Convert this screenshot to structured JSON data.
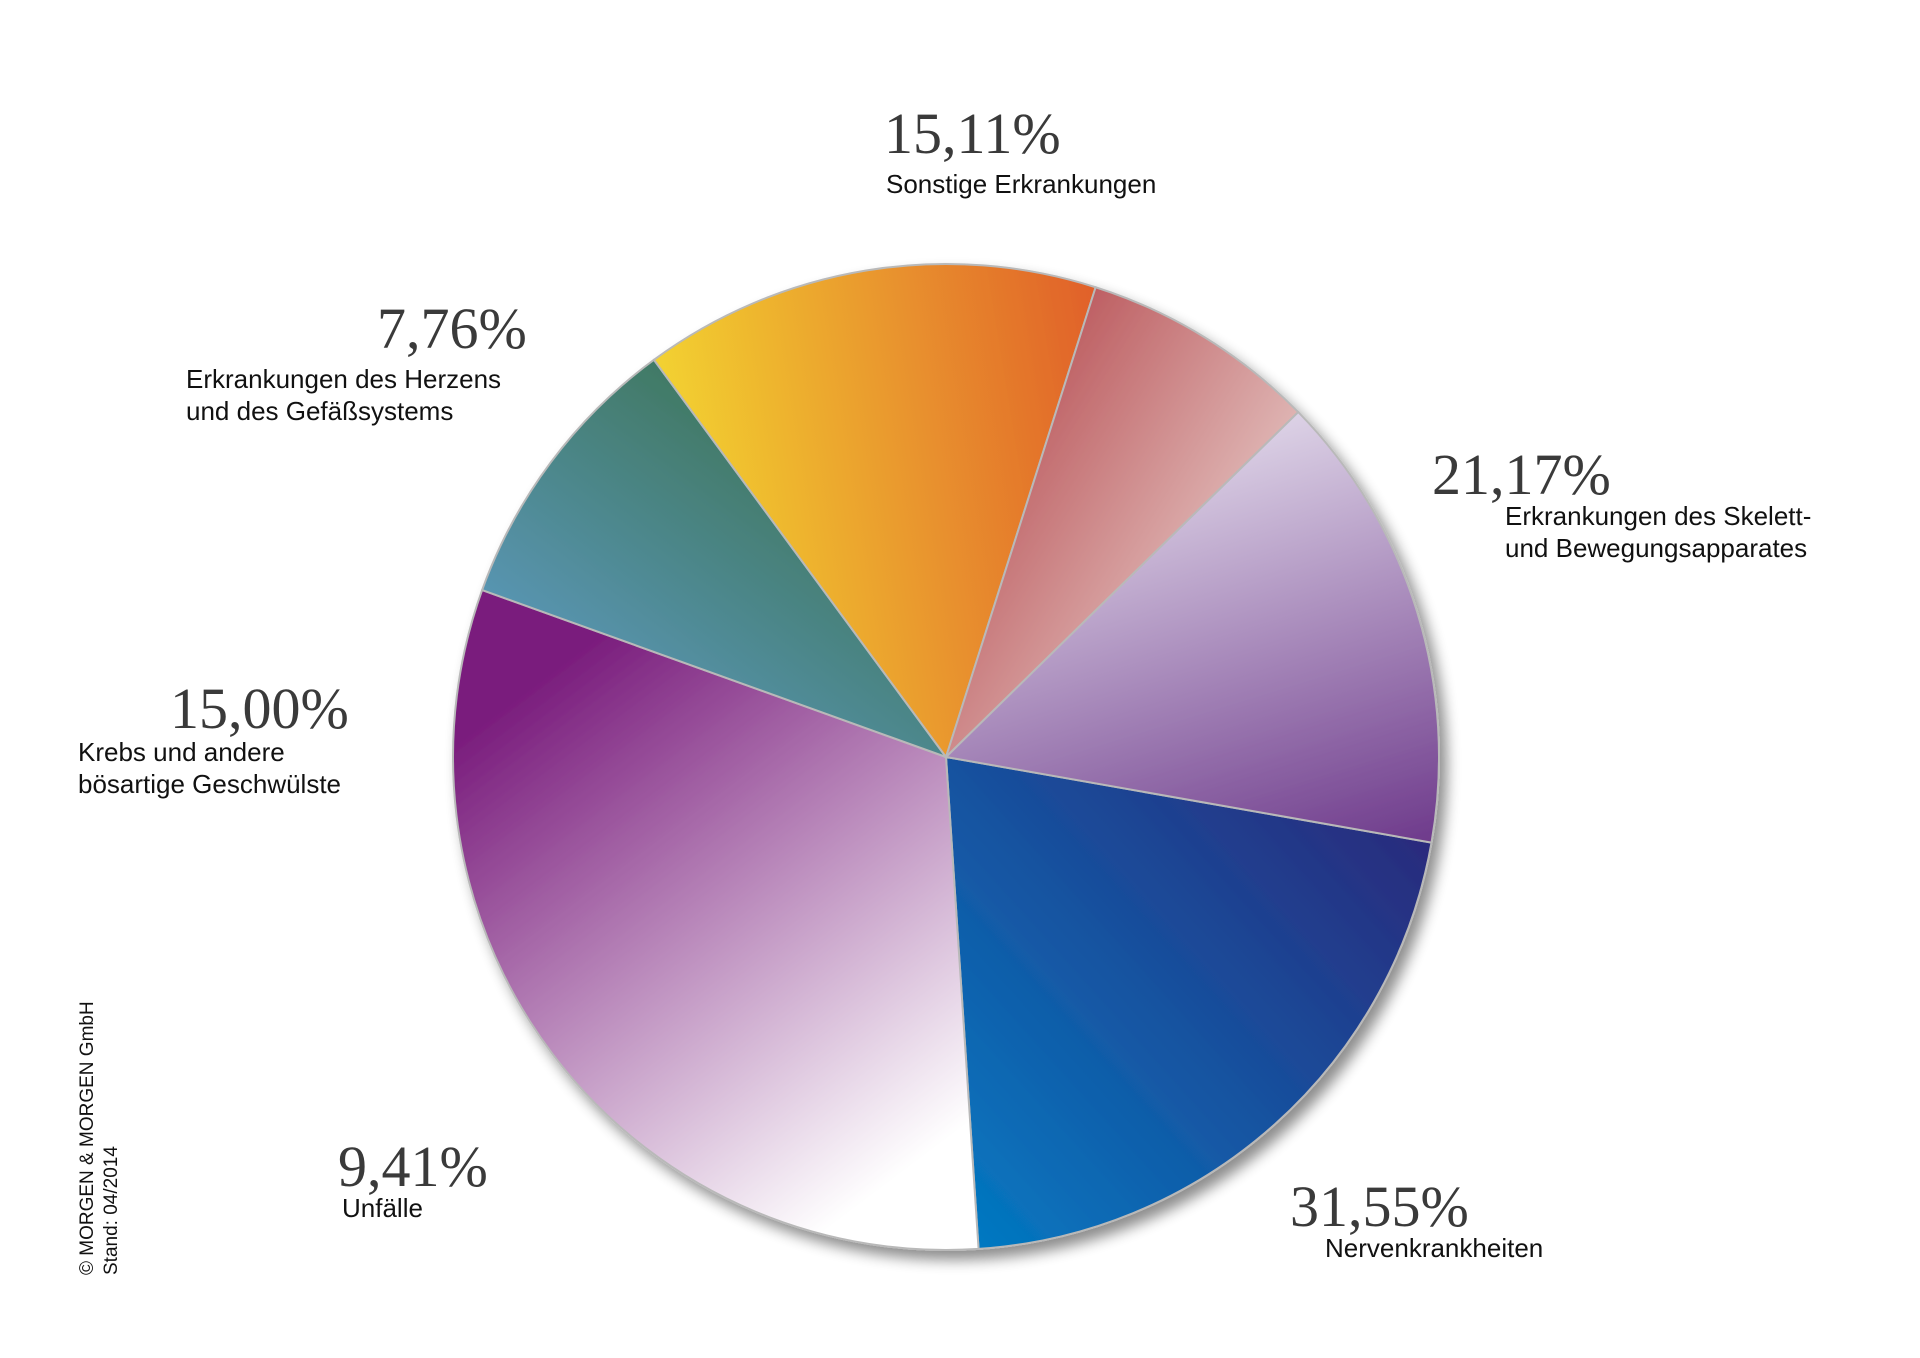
{
  "chart_data": {
    "type": "pie",
    "title": "",
    "unit": "%",
    "slices": [
      {
        "value": 21.17,
        "value_label": "21,17%",
        "label_lines": [
          "Erkrankungen des Skelett-",
          "und Bewegungsapparates"
        ],
        "colors": [
          "#2a2a7c",
          "#0379c2"
        ]
      },
      {
        "value": 31.55,
        "value_label": "31,55%",
        "label_lines": [
          "Nervenkrankheiten"
        ],
        "colors": [
          "#ffffff",
          "#7a1d7d"
        ]
      },
      {
        "value": 9.41,
        "value_label": "9,41%",
        "label_lines": [
          "Unfälle"
        ],
        "colors": [
          "#65a4dc",
          "#346a3a"
        ]
      },
      {
        "value": 15.0,
        "value_label": "15,00%",
        "label_lines": [
          "Krebs und andere",
          "bösartige Geschwülste"
        ],
        "colors": [
          "#f6e731",
          "#dd4b2a"
        ]
      },
      {
        "value": 7.76,
        "value_label": "7,76%",
        "label_lines": [
          "Erkrankungen des Herzens",
          "und des Gefäßsystems"
        ],
        "colors": [
          "#a51f26",
          "#f7f4ef"
        ]
      },
      {
        "value": 15.11,
        "value_label": "15,11%",
        "label_lines": [
          "Sonstige Erkrankungen"
        ],
        "colors": [
          "#f0edf6",
          "#5a1f7b"
        ]
      }
    ],
    "legend": "none",
    "start_angle_deg_clockwise_from_east": 10
  },
  "credit": {
    "lines": [
      "© MORGEN & MORGEN GmbH",
      "Stand: 04/2014"
    ]
  }
}
